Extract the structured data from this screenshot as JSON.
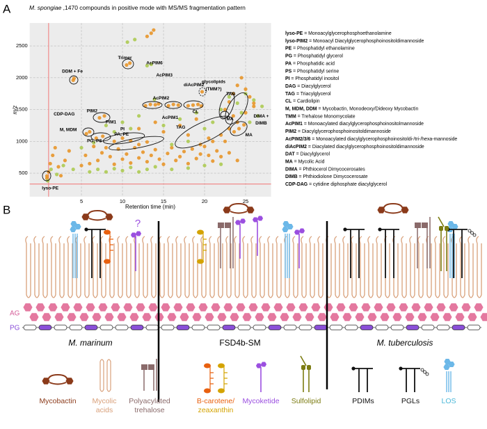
{
  "chart_data": {
    "type": "scatter",
    "title": [
      "M. spongiae",
      " ,1470 compounds in positive mode with MS/MS fragmentation pattern"
    ],
    "x_label": "Retention time (min)",
    "y_label": "m/z",
    "xlim": [
      -1.3,
      28.1
    ],
    "ylim": [
      130,
      2860
    ],
    "xticks": [
      5,
      10,
      15,
      20,
      25
    ],
    "yticks": [
      500,
      1000,
      1500,
      2000,
      2500
    ],
    "grid": true,
    "vlines": [
      1
    ],
    "hlines": [
      330
    ],
    "line_color": "#f08a8a",
    "series": [
      {
        "color": "#e8901e",
        "x": [
          0.8,
          1.0,
          1.2,
          1.5,
          1.8,
          2.2,
          2.5,
          3,
          3.5,
          5,
          5.5,
          6,
          6.5,
          7,
          7.5,
          8,
          8.5,
          9,
          9.5,
          10,
          10.5,
          11,
          11.5,
          12,
          12.5,
          13,
          13.5,
          14,
          14.5,
          15,
          15.5,
          16,
          16.5,
          17,
          17.5,
          18,
          18.5,
          19,
          19.5,
          20,
          20.5,
          21,
          21.5,
          22,
          23,
          24,
          4.0,
          4.1,
          10.5,
          10.9,
          13.0,
          13.5,
          13.8,
          22.5,
          23,
          23.5,
          24,
          24.5,
          25,
          25.5,
          26,
          12.8,
          13.4,
          14,
          14.4,
          15.6,
          16.2,
          16.8,
          18,
          18.6,
          19.2,
          19.6,
          19.7,
          5.6,
          6,
          7.2,
          7.8,
          6.8,
          7.6,
          9,
          10,
          11,
          12,
          13,
          19.5,
          21,
          22,
          23,
          20.5,
          22.5,
          23.6,
          24.2,
          24.8,
          24,
          25,
          26,
          23.5,
          12,
          14,
          15,
          17,
          18,
          19,
          0.8
        ],
        "values": [
          420,
          520,
          650,
          780,
          900,
          600,
          460,
          700,
          850,
          620,
          780,
          650,
          920,
          700,
          820,
          900,
          760,
          640,
          880,
          720,
          800,
          660,
          900,
          740,
          830,
          680,
          780,
          870,
          720,
          640,
          810,
          900,
          700,
          760,
          840,
          650,
          880,
          730,
          800,
          920,
          780,
          690,
          850,
          760,
          820,
          700,
          1960,
          1990,
          2200,
          2230,
          2650,
          2700,
          2750,
          1500,
          1620,
          1750,
          1880,
          2000,
          1820,
          1700,
          1600,
          1560,
          1580,
          1575,
          1590,
          1560,
          1580,
          1570,
          1560,
          1570,
          1580,
          1555,
          1780,
          1120,
          1150,
          1370,
          1400,
          1050,
          1080,
          1000,
          1050,
          1010,
          950,
          990,
          950,
          1000,
          1100,
          1200,
          1050,
          1000,
          1150,
          1200,
          1260,
          1300,
          1450,
          1550,
          1400,
          1200,
          1300,
          1150,
          1250,
          1100,
          1350,
          456
        ]
      },
      {
        "color": "#a9c94a",
        "x": [
          0.9,
          1.3,
          2,
          2.8,
          4,
          6,
          7,
          8,
          9,
          10,
          11,
          12,
          13,
          14,
          16,
          18,
          20,
          22,
          13.0,
          13.5,
          11.5,
          10.6,
          13.9,
          8,
          9,
          10,
          11,
          12,
          15,
          17,
          19,
          21,
          22,
          23,
          24,
          25,
          26,
          27,
          26.5,
          25.5,
          24.5,
          5,
          6.5,
          20,
          18,
          16
        ],
        "values": [
          380,
          560,
          480,
          620,
          560,
          520,
          560,
          520,
          570,
          540,
          590,
          520,
          560,
          600,
          560,
          580,
          620,
          640,
          2190,
          2210,
          2600,
          2560,
          1660,
          1250,
          1150,
          1300,
          1200,
          1400,
          1250,
          1350,
          1450,
          1300,
          1500,
          1700,
          1600,
          1750,
          1650,
          1550,
          1400,
          1300,
          1450,
          900,
          980,
          1200,
          1000,
          950
        ]
      }
    ],
    "annotations": [
      {
        "text": "lyso-PE",
        "x": 1.2,
        "y": 260
      },
      {
        "text": "CDP-DAG",
        "x": 2.9,
        "y": 1429
      },
      {
        "text": "M, MDM",
        "x": 3.4,
        "y": 1178
      },
      {
        "text": "PIM2",
        "x": 6.3,
        "y": 1473
      },
      {
        "text": "PIM1",
        "x": 8.6,
        "y": 1298
      },
      {
        "text": "PG, PS",
        "x": 6.6,
        "y": 1003
      },
      {
        "text": "PI",
        "x": 10.0,
        "y": 1189
      },
      {
        "text": "PA, PE",
        "x": 9.9,
        "y": 1112
      },
      {
        "text": "DDM + Fe",
        "x": 3.9,
        "y": 2096
      },
      {
        "text": "Trimer",
        "x": 10.3,
        "y": 2314
      },
      {
        "text": "AcPIM6",
        "x": 13.9,
        "y": 2227
      },
      {
        "text": "AcPIM3",
        "x": 15.1,
        "y": 2041
      },
      {
        "text": "AcPIM2",
        "x": 14.7,
        "y": 1680
      },
      {
        "text": "AcPIM1",
        "x": 15.8,
        "y": 1374
      },
      {
        "text": "diAcPIM2",
        "x": 18.7,
        "y": 1888
      },
      {
        "text": "CL",
        "x": 18.9,
        "y": 1462
      },
      {
        "text": "TAG",
        "x": 17.1,
        "y": 1221
      },
      {
        "text": "glycolipids",
        "x": 21.1,
        "y": 1932
      },
      {
        "text": "(TMM?)",
        "x": 21.1,
        "y": 1822
      },
      {
        "text": "TAG",
        "x": 23.2,
        "y": 1746
      },
      {
        "text": "DIMA +",
        "x": 26.9,
        "y": 1396
      },
      {
        "text": "DIMB",
        "x": 26.9,
        "y": 1287
      },
      {
        "text": "MA",
        "x": 23.1,
        "y": 1352
      },
      {
        "text": "MA",
        "x": 25.4,
        "y": 1101
      }
    ]
  },
  "figure": {
    "panel_a_label": "A",
    "panel_b_label": "B",
    "abbreviations": [
      {
        "term": "lyso-PE",
        "definition": " = Monoacylglycerophosphoethanolamine"
      },
      {
        "term": "lyso-PIM2",
        "definition": " = Monoacyl Diacylglycerophosphoinositoldimannoside"
      },
      {
        "term": "PE",
        "definition": " = Phosphatidyl ethanolamine"
      },
      {
        "term": "PG",
        "definition": " = Phosphatidyl glycerol"
      },
      {
        "term": "PA",
        "definition": " = Phosphatidic acid"
      },
      {
        "term": "PS",
        "definition": " = Phosphatidyl serine"
      },
      {
        "term": "PI",
        "definition": " = Phosphatidyl inositol"
      },
      {
        "term": "DAG",
        "definition": " = Diacylglycerol"
      },
      {
        "term": "TAG",
        "definition": " = Triacylglycerol"
      },
      {
        "term": "CL",
        "definition": " = Cardiolipin"
      },
      {
        "term": "M, MDM, DDM",
        "definition": " = Mycobactin, Monodeoxy/Dideoxy Mycobactin"
      },
      {
        "term": "TMM",
        "definition": " = Trehalose Monomycolate"
      },
      {
        "term": "AcPIM1",
        "definition": " = Monoacylated diacylglycerophosphoinositolmannoside"
      },
      {
        "term": "PIM2",
        "definition": " = Diacylglycerophosphoinositoldimannoside"
      },
      {
        "term": "AcPIM2/3/6",
        "definition": " = Monoacylated diacylglycerophosphoinositoldi-/tri-/hexa-mannoside"
      },
      {
        "term": "diAcPIM2",
        "definition": " = Diacylated diacylglycerophosphoinositoldimannoside"
      },
      {
        "term": "DAT",
        "definition": " = Diacylglycerol"
      },
      {
        "term": "MA",
        "definition": " = Mycolic Acid"
      },
      {
        "term": "DIMA",
        "definition": " = Phthiocerol Dimycocerosates"
      },
      {
        "term": "DIMB",
        "definition": " = Phthiodiolone Dimycocerosate"
      },
      {
        "term": "CDP-DAG",
        "definition": " = cytidine diphosphate diacylglycerol"
      }
    ],
    "layer_labels": [
      "AG",
      "PG"
    ],
    "strains": [
      "M. marinum",
      "FSD4b-SM",
      "M. tuberculosis"
    ],
    "unknown": "?",
    "legend": [
      {
        "lines": [
          "Mycobactin"
        ],
        "colors": [
          "#8b3a1a"
        ]
      },
      {
        "lines": [
          "Mycolic",
          "acids"
        ],
        "colors": [
          "#d9a07a",
          "#d9a07a"
        ]
      },
      {
        "lines": [
          "Polyacylated",
          "trehalose"
        ],
        "colors": [
          "#8a6a6a",
          "#8a6a6a"
        ]
      },
      {
        "lines": [
          "B-carotene/",
          "zeaxanthin"
        ],
        "colors": [
          "#e8600f",
          "#d4a300"
        ]
      },
      {
        "lines": [
          "Mycoketide"
        ],
        "colors": [
          "#9b4fe0"
        ]
      },
      {
        "lines": [
          "Sulfolipid"
        ],
        "colors": [
          "#7c7c12"
        ]
      },
      {
        "lines": [
          "PDIMs"
        ],
        "colors": [
          "#111111"
        ]
      },
      {
        "lines": [
          "PGLs"
        ],
        "colors": [
          "#111111"
        ]
      },
      {
        "lines": [
          "LOS"
        ],
        "colors": [
          "#4bb8d8"
        ]
      }
    ]
  }
}
